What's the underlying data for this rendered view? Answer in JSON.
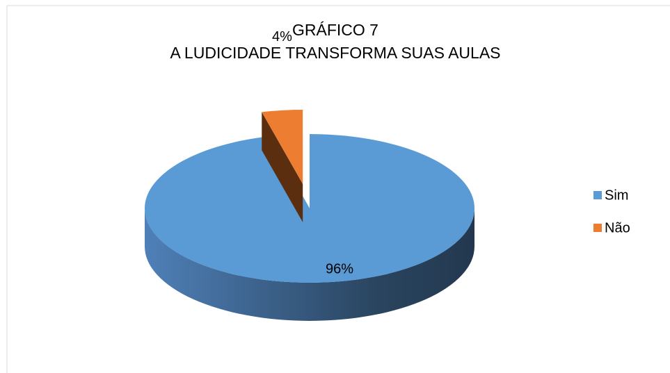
{
  "chart_data": {
    "type": "pie",
    "title": "GRÁFICO 7",
    "subtitle": "A LUDICIDADE TRANSFORMA SUAS AULAS",
    "categories": [
      "Sim",
      "Não"
    ],
    "values": [
      96,
      4
    ],
    "value_labels": [
      "96%",
      "4%"
    ],
    "colors": [
      "#5b9bd5",
      "#ed7d31"
    ],
    "legend": "right"
  }
}
